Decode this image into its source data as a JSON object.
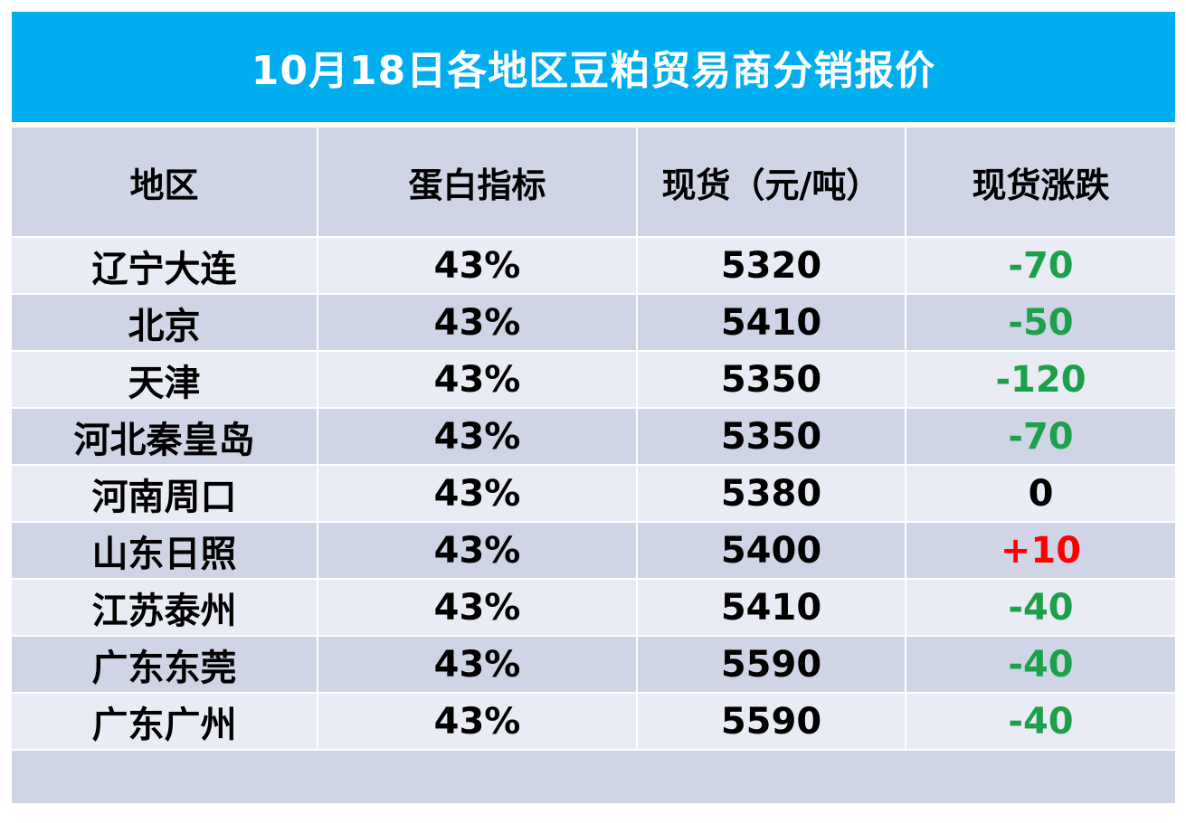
{
  "title": "10月18日各地区豆粕贸易商分销报价",
  "headers": {
    "region": "地区",
    "protein": "蛋白指标",
    "spot": "现货（元/吨）",
    "change": "现货涨跌"
  },
  "colors": {
    "title_bg": "#00AEEF",
    "down": "#1DA04A",
    "up": "#FF0000",
    "row_light": "#E9ECF4",
    "row_dark": "#CFD5E6"
  },
  "rows": [
    {
      "region": "辽宁大连",
      "protein": "43%",
      "spot": "5320",
      "change": "-70"
    },
    {
      "region": "北京",
      "protein": "43%",
      "spot": "5410",
      "change": "-50"
    },
    {
      "region": "天津",
      "protein": "43%",
      "spot": "5350",
      "change": "-120"
    },
    {
      "region": "河北秦皇岛",
      "protein": "43%",
      "spot": "5350",
      "change": "-70"
    },
    {
      "region": "河南周口",
      "protein": "43%",
      "spot": "5380",
      "change": "0"
    },
    {
      "region": "山东日照",
      "protein": "43%",
      "spot": "5400",
      "change": "+10"
    },
    {
      "region": "江苏泰州",
      "protein": "43%",
      "spot": "5410",
      "change": "-40"
    },
    {
      "region": "广东东莞",
      "protein": "43%",
      "spot": "5590",
      "change": "-40"
    },
    {
      "region": "广东广州",
      "protein": "43%",
      "spot": "5590",
      "change": "-40"
    }
  ]
}
